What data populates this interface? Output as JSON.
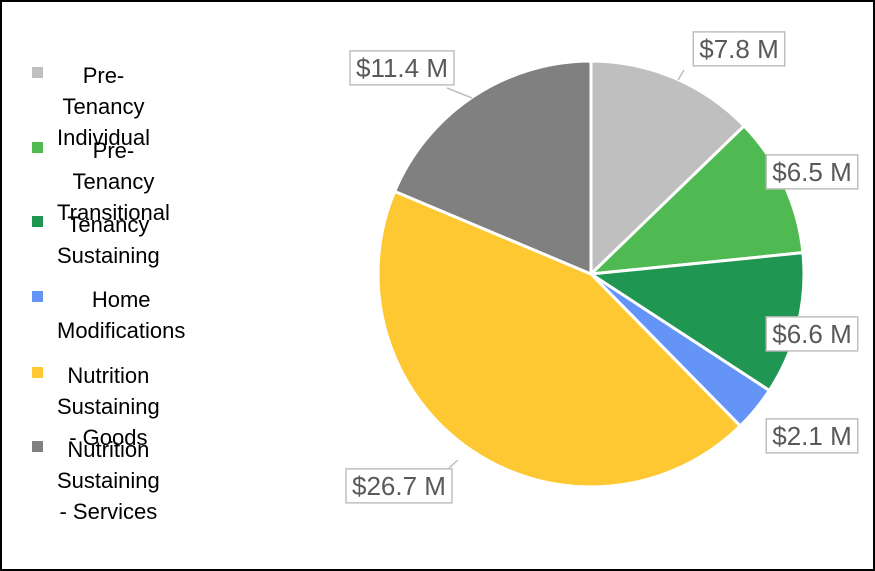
{
  "chart_data": {
    "type": "pie",
    "categories": [
      "Pre-Tenancy Individual",
      "Pre-Tenancy Transitional",
      "Tenancy Sustaining",
      "Home Modifications",
      "Nutrition Sustaining - Goods",
      "Nutrition Sustaining - Services"
    ],
    "values": [
      7.8,
      6.5,
      6.6,
      2.1,
      26.7,
      11.4
    ],
    "value_labels": [
      "$7.8 M",
      "$6.5 M",
      "$6.6 M",
      "$2.1 M",
      "$26.7 M",
      "$11.4 M"
    ],
    "colors": [
      "#bfbfbf",
      "#4fba52",
      "#1f9651",
      "#6594f7",
      "#fec832",
      "#808080"
    ],
    "legend": "left"
  }
}
